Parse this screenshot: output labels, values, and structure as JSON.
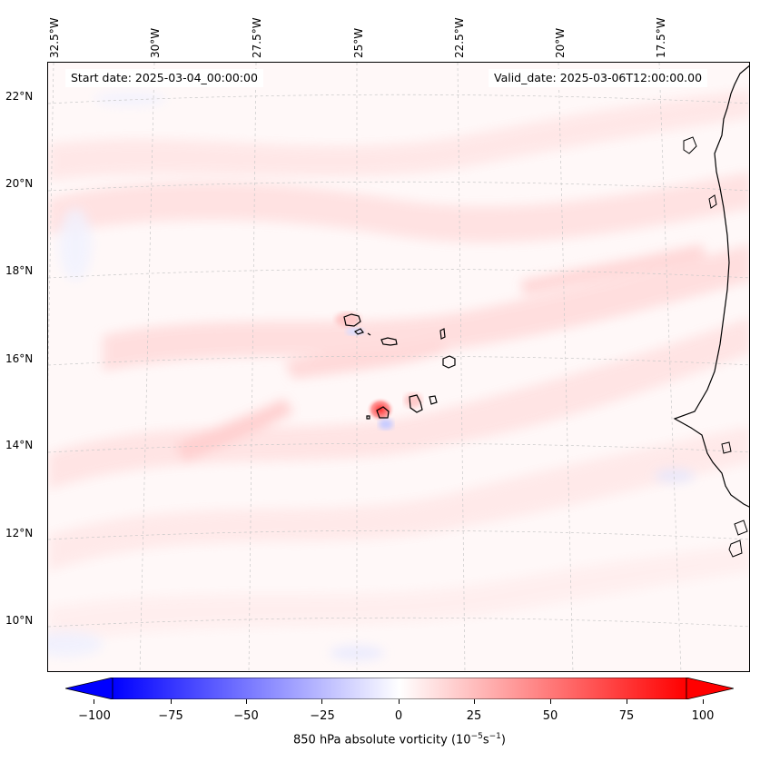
{
  "header": {
    "start_date": "Start date: 2025-03-04_00:00:00",
    "valid_date": "Valid_date: 2025-03-06T12:00:00.00"
  },
  "map": {
    "longitude_labels": [
      "32.5°W",
      "30°W",
      "27.5°W",
      "25°W",
      "22.5°W",
      "20°W",
      "17.5°W"
    ],
    "latitude_labels": [
      "22°N",
      "20°N",
      "18°N",
      "16°N",
      "14°N",
      "12°N",
      "10°N"
    ],
    "field": "850 hPa absolute vorticity",
    "colormap": "bwr",
    "colors": {
      "negative_max": "#0000ff",
      "neutral": "#ffffff",
      "positive_max": "#ff0000",
      "coastline": "#000000",
      "gridline": "#cccccc"
    }
  },
  "colorbar": {
    "ticks": [
      "−100",
      "−75",
      "−50",
      "−25",
      "0",
      "25",
      "50",
      "75",
      "100"
    ],
    "label_main": "850 hPa absolute vorticity (10",
    "label_exp1": "−5",
    "label_mid": "s",
    "label_exp2": "−1",
    "label_end": ")",
    "range": [
      -100,
      100
    ],
    "extend": "both"
  }
}
